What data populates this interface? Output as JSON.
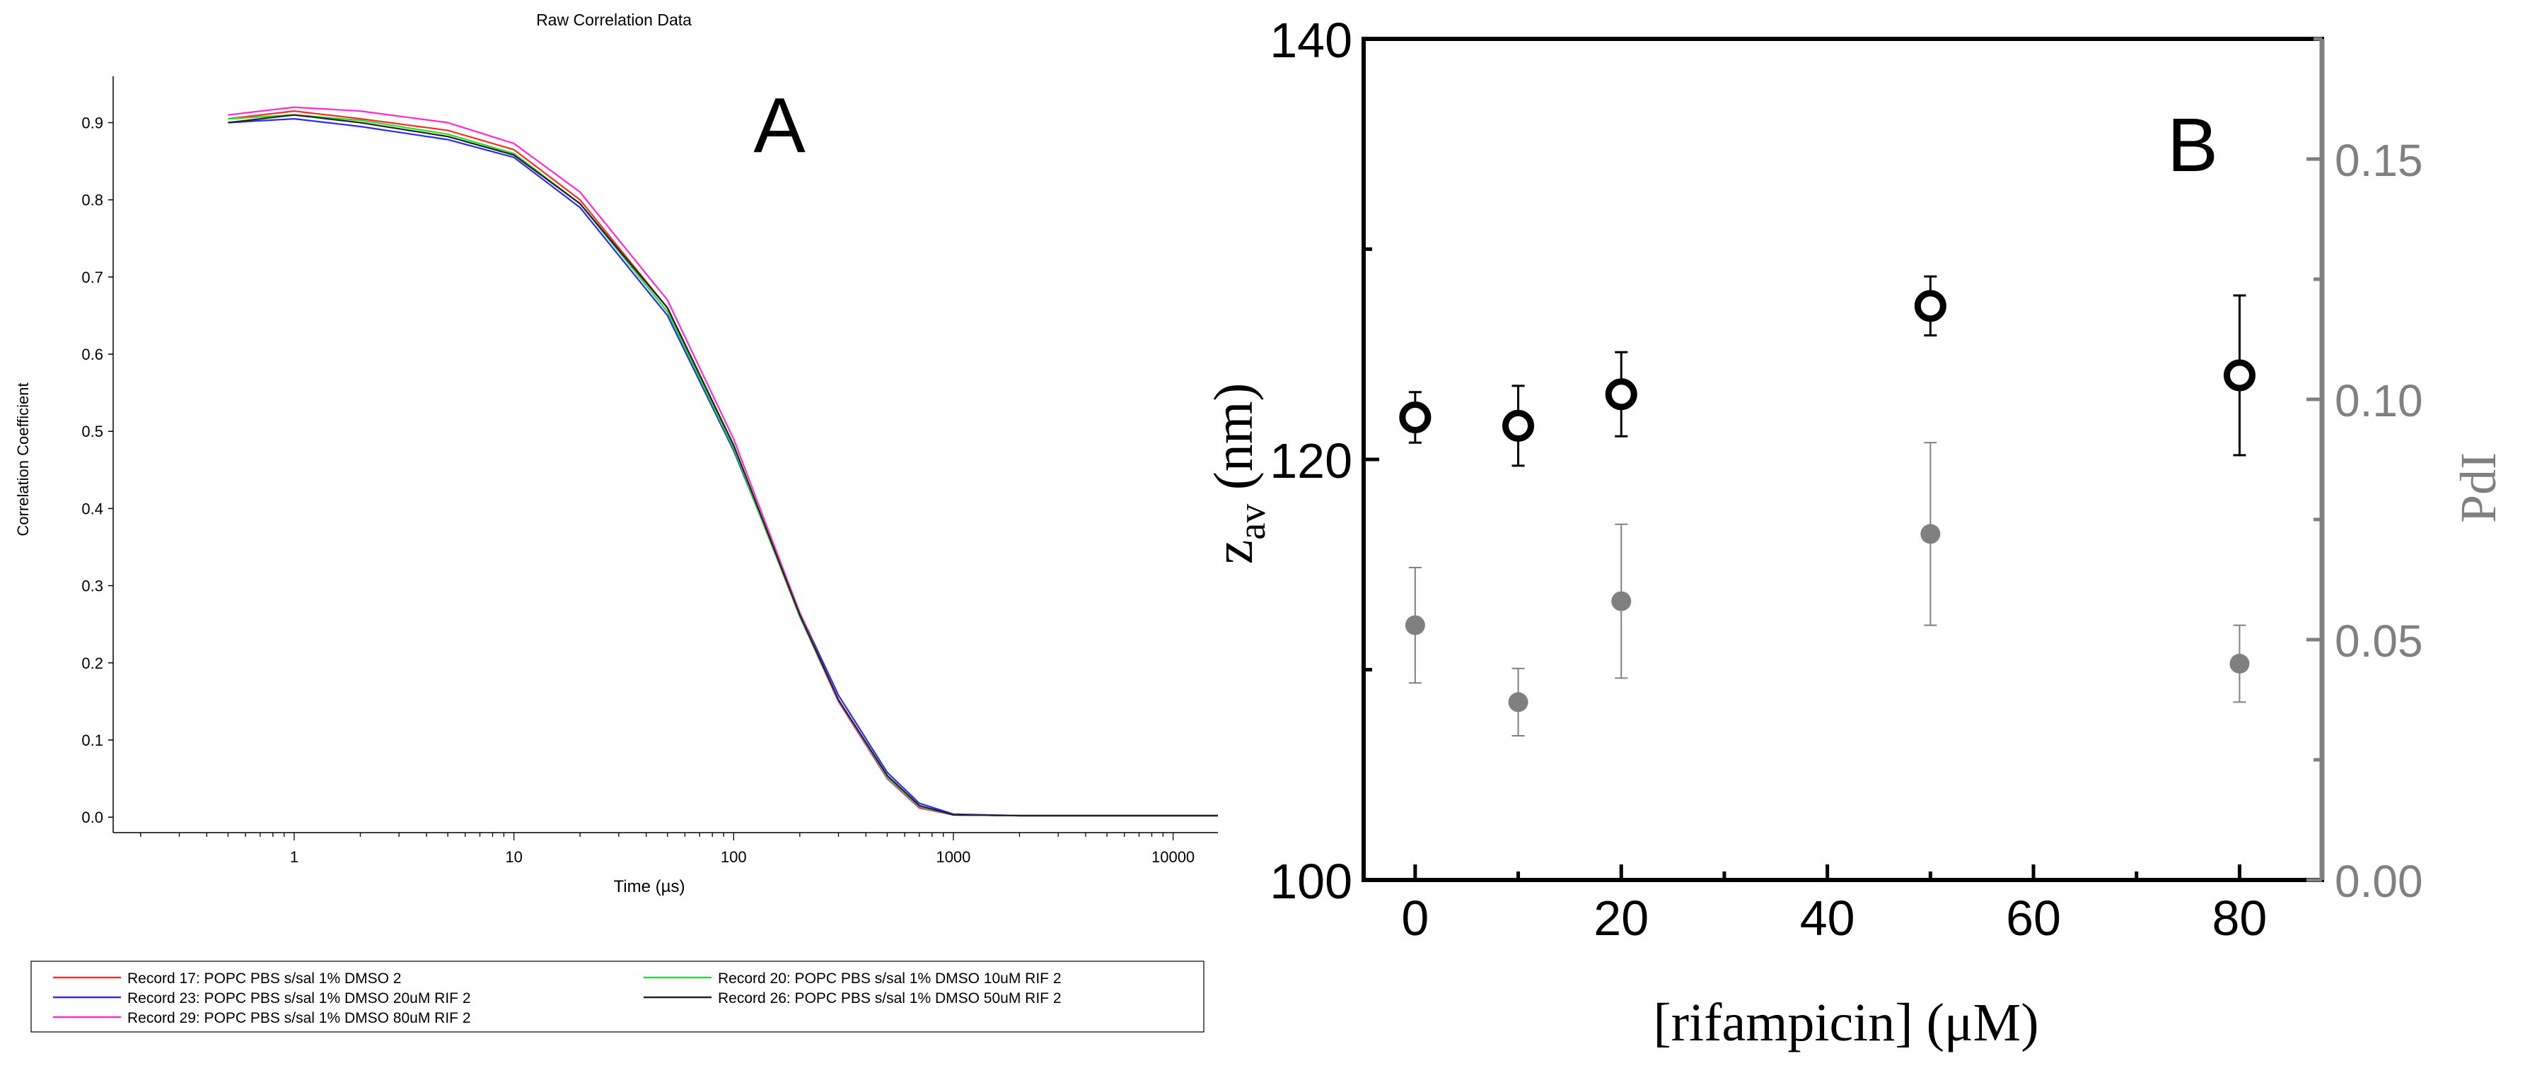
{
  "panel_a": {
    "panel_letter": "A",
    "colors": {
      "record_17": "#ff2a2a",
      "record_23": "#2a2aff",
      "record_29": "#ff2ad4",
      "record_20": "#22e022",
      "record_26": "#222222"
    }
  },
  "panel_b": {
    "panel_letter": "B",
    "colors": {
      "zav_marker": "#000000",
      "pdi_marker": "#808080",
      "right_axis": "#808080"
    }
  },
  "chart_data": [
    {
      "type": "line",
      "title": "Raw Correlation Data",
      "xlabel": "Time (µs)",
      "ylabel": "Correlation Coefficient",
      "xscale": "log",
      "xlim": [
        0.15,
        16000
      ],
      "ylim": [
        -0.02,
        0.96
      ],
      "x_ticks": [
        1,
        10,
        100,
        1000,
        10000
      ],
      "x_tick_labels": [
        "1",
        "10",
        "100",
        "1000",
        "10000"
      ],
      "y_ticks": [
        0.0,
        0.1,
        0.2,
        0.3,
        0.4,
        0.5,
        0.6,
        0.7,
        0.8,
        0.9
      ],
      "y_tick_labels": [
        "0.0",
        "0.1",
        "0.2",
        "0.3",
        "0.4",
        "0.5",
        "0.6",
        "0.7",
        "0.8",
        "0.9"
      ],
      "legend_position": "bottom",
      "x": [
        0.5,
        1,
        2,
        5,
        10,
        20,
        50,
        100,
        200,
        300,
        500,
        700,
        1000,
        2000,
        5000,
        16000
      ],
      "series": [
        {
          "name": "Record 17: POPC PBS s/sal 1% DMSO 2",
          "color_key": "record_17",
          "values": [
            0.905,
            0.915,
            0.905,
            0.89,
            0.865,
            0.8,
            0.66,
            0.48,
            0.26,
            0.15,
            0.05,
            0.012,
            0.003,
            0.002,
            0.002,
            0.002
          ]
        },
        {
          "name": "Record 23: POPC PBS s/sal 1% DMSO 20uM RIF 2",
          "color_key": "record_23",
          "values": [
            0.9,
            0.905,
            0.895,
            0.878,
            0.855,
            0.79,
            0.65,
            0.475,
            0.265,
            0.158,
            0.058,
            0.018,
            0.004,
            0.002,
            0.002,
            0.002
          ]
        },
        {
          "name": "Record 29: POPC PBS s/sal 1% DMSO 80uM RIF 2",
          "color_key": "record_29",
          "values": [
            0.91,
            0.92,
            0.915,
            0.9,
            0.873,
            0.81,
            0.67,
            0.49,
            0.265,
            0.15,
            0.05,
            0.013,
            0.003,
            0.002,
            0.002,
            0.002
          ]
        },
        {
          "name": "Record 20: POPC PBS s/sal 1% DMSO 10uM RIF 2",
          "color_key": "record_20",
          "values": [
            0.905,
            0.91,
            0.903,
            0.885,
            0.86,
            0.795,
            0.655,
            0.478,
            0.26,
            0.152,
            0.052,
            0.014,
            0.003,
            0.002,
            0.002,
            0.002
          ]
        },
        {
          "name": "Record 26: POPC PBS s/sal 1% DMSO 50uM RIF 2",
          "color_key": "record_26",
          "values": [
            0.9,
            0.91,
            0.9,
            0.882,
            0.858,
            0.795,
            0.66,
            0.482,
            0.262,
            0.152,
            0.054,
            0.015,
            0.003,
            0.002,
            0.002,
            0.002
          ]
        }
      ]
    },
    {
      "type": "scatter",
      "title": "",
      "xlabel": "[rifampicin] (μM)",
      "ylabel_main": "z",
      "ylabel_sub": "av",
      "ylabel_unit": " (nm)",
      "ylabel_right": "PdI",
      "xlim": [
        -5,
        88
      ],
      "ylim_left": [
        100,
        140
      ],
      "ylim_right": [
        0.0,
        0.175
      ],
      "x_ticks": [
        0,
        20,
        40,
        60,
        80
      ],
      "x_tick_labels": [
        "0",
        "20",
        "40",
        "60",
        "80"
      ],
      "y_ticks_left": [
        100,
        120,
        140
      ],
      "y_tick_labels_left": [
        "100",
        "120",
        "140"
      ],
      "y_ticks_right": [
        0.0,
        0.05,
        0.1,
        0.15
      ],
      "y_tick_labels_right": [
        "0.00",
        "0.05",
        "0.10",
        "0.15"
      ],
      "x": [
        0,
        10,
        20,
        50,
        80
      ],
      "series": [
        {
          "name": "z_av",
          "axis": "left",
          "marker": "open-circle",
          "color_key": "zav_marker",
          "values": [
            122.0,
            121.6,
            123.1,
            127.3,
            124.0
          ],
          "errors": [
            1.2,
            1.9,
            2.0,
            1.4,
            3.8
          ]
        },
        {
          "name": "PdI",
          "axis": "right",
          "marker": "filled-circle",
          "color_key": "pdi_marker",
          "values": [
            0.053,
            0.037,
            0.058,
            0.072,
            0.045
          ],
          "errors": [
            0.012,
            0.007,
            0.016,
            0.019,
            0.008
          ]
        }
      ]
    }
  ]
}
